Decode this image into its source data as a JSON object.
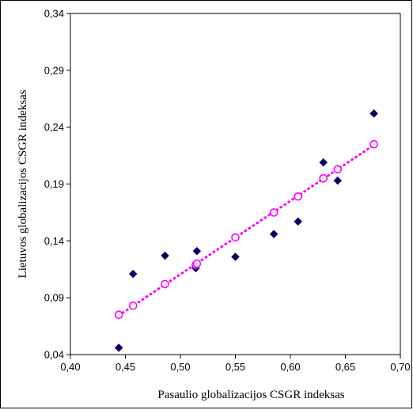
{
  "chart_data": {
    "type": "scatter",
    "xlabel": "Pasaulio globalizacijos CSGR indeksas",
    "ylabel": "Lietuvos globalizacijos CSGR indeksas",
    "xlim": [
      0.4,
      0.7
    ],
    "ylim": [
      0.04,
      0.34
    ],
    "x_ticks": [
      "0,40",
      "0,45",
      "0,50",
      "0,55",
      "0,60",
      "0,65",
      "0,70"
    ],
    "y_ticks": [
      "0,04",
      "0,09",
      "0,14",
      "0,19",
      "0,24",
      "0,29",
      "0,34"
    ],
    "x_tick_values": [
      0.4,
      0.45,
      0.5,
      0.55,
      0.6,
      0.65,
      0.7
    ],
    "y_tick_values": [
      0.04,
      0.09,
      0.14,
      0.19,
      0.24,
      0.29,
      0.34
    ],
    "grid": false,
    "legend": false,
    "series": [
      {
        "marker": "diamond",
        "color": "#000066",
        "points": [
          {
            "x": 0.444,
            "y": 0.046
          },
          {
            "x": 0.457,
            "y": 0.111
          },
          {
            "x": 0.486,
            "y": 0.127
          },
          {
            "x": 0.514,
            "y": 0.116
          },
          {
            "x": 0.515,
            "y": 0.131
          },
          {
            "x": 0.55,
            "y": 0.126
          },
          {
            "x": 0.585,
            "y": 0.146
          },
          {
            "x": 0.607,
            "y": 0.157
          },
          {
            "x": 0.63,
            "y": 0.209
          },
          {
            "x": 0.643,
            "y": 0.193
          },
          {
            "x": 0.676,
            "y": 0.252
          }
        ]
      },
      {
        "marker": "open-circle",
        "color": "#ff00ff",
        "trendline": true,
        "points": [
          {
            "x": 0.444,
            "y": 0.075
          },
          {
            "x": 0.457,
            "y": 0.083
          },
          {
            "x": 0.486,
            "y": 0.102
          },
          {
            "x": 0.514,
            "y": 0.119
          },
          {
            "x": 0.515,
            "y": 0.12
          },
          {
            "x": 0.55,
            "y": 0.143
          },
          {
            "x": 0.585,
            "y": 0.165
          },
          {
            "x": 0.607,
            "y": 0.179
          },
          {
            "x": 0.63,
            "y": 0.195
          },
          {
            "x": 0.643,
            "y": 0.203
          },
          {
            "x": 0.676,
            "y": 0.225
          }
        ]
      }
    ]
  }
}
